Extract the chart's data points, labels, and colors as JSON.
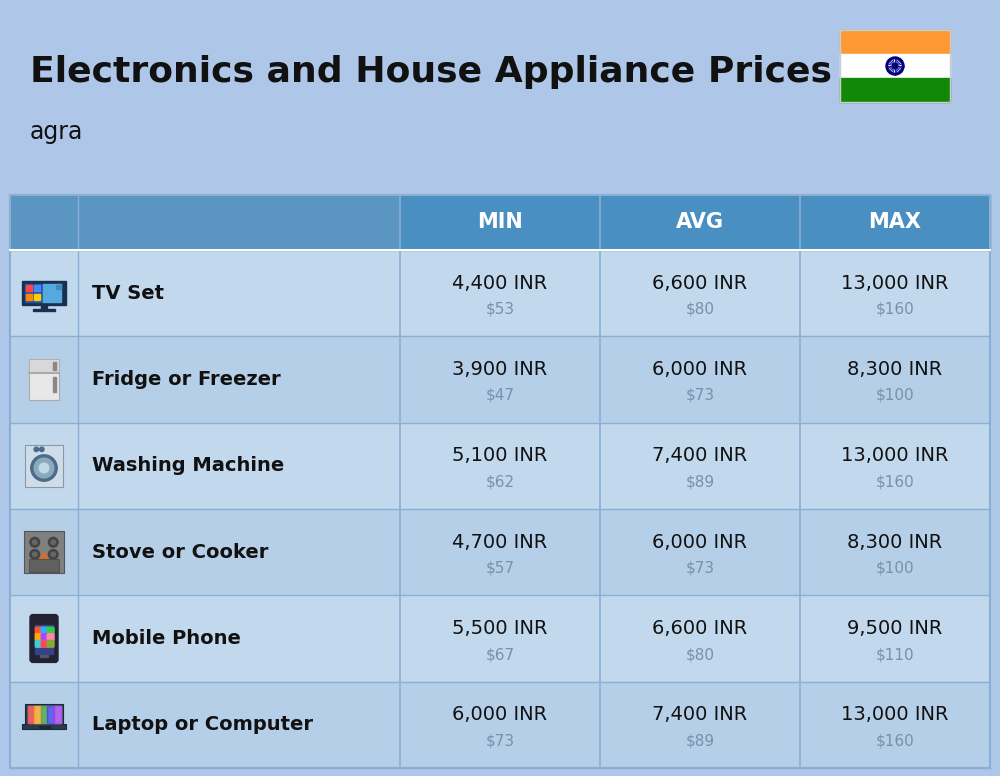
{
  "title": "Electronics and House Appliance Prices",
  "subtitle": "agra",
  "background_color": "#aec6e8",
  "header_color": "#4a8fc2",
  "header_text_color": "#ffffff",
  "row_colors": [
    "#c2d8ed",
    "#b5cfe9"
  ],
  "divider_color": "#8aafd4",
  "text_dark": "#111111",
  "text_gray": "#7a8faa",
  "col_headers": [
    "MIN",
    "AVG",
    "MAX"
  ],
  "items": [
    {
      "name": "TV Set",
      "min_inr": "4,400 INR",
      "min_usd": "$53",
      "avg_inr": "6,600 INR",
      "avg_usd": "$80",
      "max_inr": "13,000 INR",
      "max_usd": "$160"
    },
    {
      "name": "Fridge or Freezer",
      "min_inr": "3,900 INR",
      "min_usd": "$47",
      "avg_inr": "6,000 INR",
      "avg_usd": "$73",
      "max_inr": "8,300 INR",
      "max_usd": "$100"
    },
    {
      "name": "Washing Machine",
      "min_inr": "5,100 INR",
      "min_usd": "$62",
      "avg_inr": "7,400 INR",
      "avg_usd": "$89",
      "max_inr": "13,000 INR",
      "max_usd": "$160"
    },
    {
      "name": "Stove or Cooker",
      "min_inr": "4,700 INR",
      "min_usd": "$57",
      "avg_inr": "6,000 INR",
      "avg_usd": "$73",
      "max_inr": "8,300 INR",
      "max_usd": "$100"
    },
    {
      "name": "Mobile Phone",
      "min_inr": "5,500 INR",
      "min_usd": "$67",
      "avg_inr": "6,600 INR",
      "avg_usd": "$80",
      "max_inr": "9,500 INR",
      "max_usd": "$110"
    },
    {
      "name": "Laptop or Computer",
      "min_inr": "6,000 INR",
      "min_usd": "$73",
      "avg_inr": "7,400 INR",
      "avg_usd": "$89",
      "max_inr": "13,000 INR",
      "max_usd": "$160"
    }
  ],
  "flag_colors": [
    "#FF9933",
    "#FFFFFF",
    "#138808"
  ],
  "flag_wheel_color": "#000080",
  "title_fontsize": 26,
  "subtitle_fontsize": 17,
  "header_fontsize": 15,
  "name_fontsize": 14,
  "value_fontsize": 14,
  "usd_fontsize": 11
}
